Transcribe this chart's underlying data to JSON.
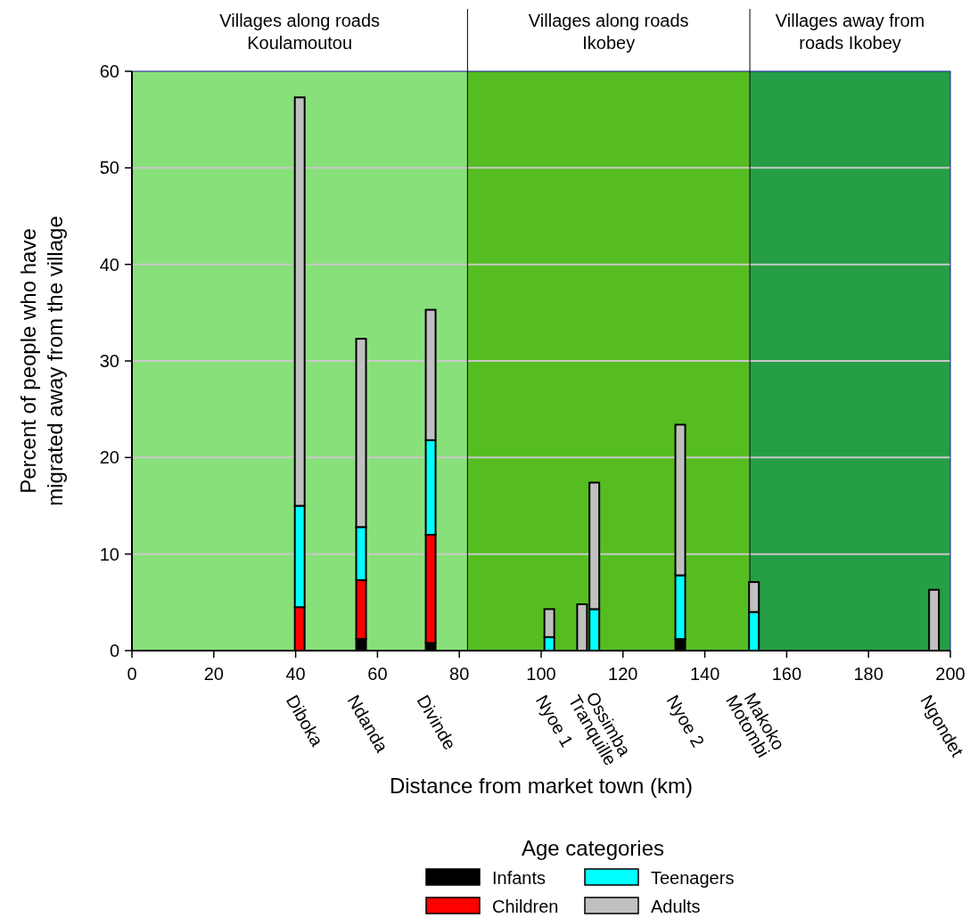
{
  "chart_data": {
    "type": "bar",
    "stacked": true,
    "xlabel": "Distance from market town (km)",
    "ylabel": "Percent of people who have migrated away from the village",
    "legend_title": "Age categories",
    "legend": "bottom",
    "grid": "y",
    "x": [
      41,
      56,
      73,
      102,
      110,
      113,
      134,
      148.5,
      152,
      196
    ],
    "series": [
      {
        "name": "Infants",
        "color": "#000000",
        "values": [
          0,
          1.2,
          0.8,
          0,
          0,
          0,
          1.2,
          0,
          0,
          0
        ]
      },
      {
        "name": "Children",
        "color": "#ff0000",
        "values": [
          4.5,
          6.1,
          11.2,
          0,
          0,
          0,
          0,
          0,
          0,
          0
        ]
      },
      {
        "name": "Teenagers",
        "color": "#00ffff",
        "values": [
          10.5,
          5.5,
          9.8,
          1.4,
          0,
          4.3,
          6.6,
          0,
          4,
          0
        ]
      },
      {
        "name": "Adults",
        "color": "#c0c0c0",
        "values": [
          42.3,
          19.5,
          13.5,
          2.9,
          4.8,
          13.1,
          15.6,
          0,
          3.1,
          6.3
        ]
      }
    ],
    "xlim": [
      0,
      200
    ],
    "xticks": [
      0,
      20,
      40,
      60,
      80,
      100,
      120,
      140,
      160,
      180,
      200
    ],
    "ylim": [
      0,
      60
    ],
    "yticks": [
      0,
      10,
      20,
      30,
      40,
      50,
      60
    ],
    "bands": [
      {
        "axis": "x",
        "from": 0,
        "to": 82,
        "label": "Villages along roads Koulamoutou",
        "color": "#88e07a"
      },
      {
        "axis": "x",
        "from": 82,
        "to": 151,
        "label": "Villages along roads Ikobey",
        "color": "#55bd22"
      },
      {
        "axis": "x",
        "from": 151,
        "to": 200,
        "label": "Villages away from roads Ikobey",
        "color": "#259e45"
      }
    ],
    "ref_lines": [
      {
        "axis": "x",
        "value": 82,
        "color": "#000000"
      },
      {
        "axis": "x",
        "value": 151,
        "color": "#000000"
      }
    ],
    "annotations": [
      {
        "text": "Diboka",
        "x": 41,
        "y": 0
      },
      {
        "text": "Ndanda",
        "x": 56,
        "y": 0
      },
      {
        "text": "Divinde",
        "x": 73,
        "y": 0
      },
      {
        "text": "Nyoe 1",
        "x": 102,
        "y": 0
      },
      {
        "text": "Tranquille",
        "x": 110,
        "y": 0
      },
      {
        "text": "Ossimba",
        "x": 113,
        "y": 0
      },
      {
        "text": "Nyoe 2",
        "x": 134,
        "y": 0
      },
      {
        "text": "Motombi",
        "x": 148.5,
        "y": 0
      },
      {
        "text": "Makoko",
        "x": 152,
        "y": 0
      },
      {
        "text": "Ngondet",
        "x": 196,
        "y": 0
      }
    ]
  }
}
